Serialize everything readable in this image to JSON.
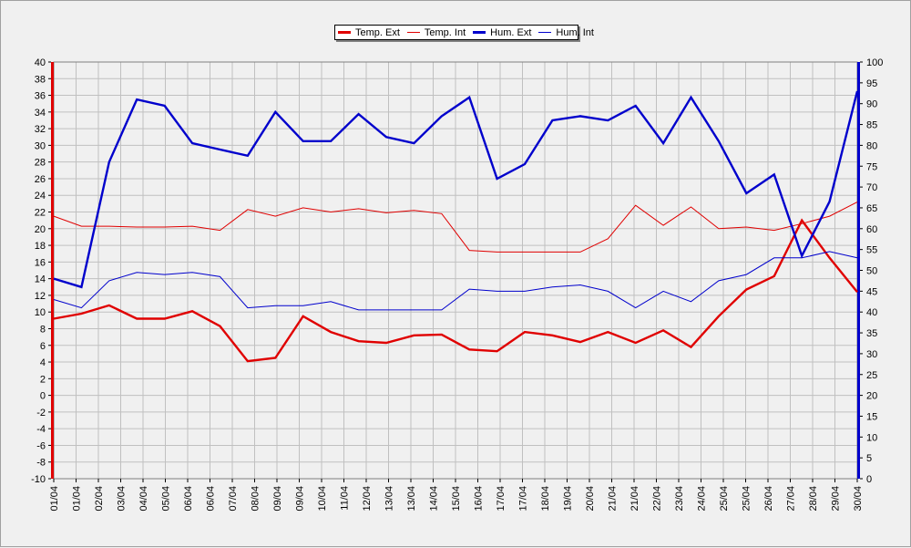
{
  "chart_data": {
    "type": "line",
    "categories": [
      "01/04",
      "01/04",
      "02/04",
      "03/04",
      "04/04",
      "05/04",
      "06/04",
      "06/04",
      "07/04",
      "08/04",
      "09/04",
      "09/04",
      "10/04",
      "11/04",
      "12/04",
      "13/04",
      "13/04",
      "14/04",
      "15/04",
      "16/04",
      "17/04",
      "17/04",
      "18/04",
      "19/04",
      "20/04",
      "21/04",
      "21/04",
      "22/04",
      "23/04",
      "24/04",
      "25/04",
      "25/04",
      "26/04",
      "27/04",
      "28/04",
      "29/04",
      "30/04"
    ],
    "y_left": {
      "min": -10,
      "max": 40,
      "step": 2,
      "ticks": [
        "-10",
        "-8",
        "-6",
        "-4",
        "-2",
        "0",
        "2",
        "4",
        "6",
        "8",
        "10",
        "12",
        "14",
        "16",
        "18",
        "20",
        "22",
        "24",
        "26",
        "28",
        "30",
        "32",
        "34",
        "36",
        "38",
        "40"
      ],
      "color": "#e00000"
    },
    "y_right": {
      "min": 0,
      "max": 100,
      "step": 5,
      "ticks": [
        "0",
        "5",
        "10",
        "15",
        "20",
        "25",
        "30",
        "35",
        "40",
        "45",
        "50",
        "55",
        "60",
        "65",
        "70",
        "75",
        "80",
        "85",
        "90",
        "95",
        "100"
      ],
      "color": "#0000cc"
    },
    "grid": true,
    "legend_position": "top-center",
    "series": [
      {
        "name": "Temp. Ext",
        "axis": "left",
        "color": "#e00000",
        "thick": true,
        "x": [
          0,
          1,
          2,
          3,
          4,
          5,
          6,
          7,
          8,
          9,
          10,
          11,
          12,
          13,
          14,
          15,
          16,
          17,
          18,
          19,
          20,
          21,
          22,
          23,
          24,
          25,
          26,
          27,
          28,
          29
        ],
        "values": [
          9.2,
          9.8,
          10.8,
          9.2,
          9.2,
          10.1,
          8.3,
          4.1,
          4.5,
          9.5,
          7.6,
          6.5,
          6.3,
          7.2,
          7.3,
          5.5,
          5.3,
          7.6,
          7.2,
          6.4,
          7.6,
          6.3,
          7.8,
          5.8,
          9.5,
          12.7,
          14.3,
          21.0,
          16.5,
          12.4
        ]
      },
      {
        "name": "Temp. Int",
        "axis": "left",
        "color": "#e00000",
        "thick": false,
        "x": [
          0,
          1,
          2,
          3,
          4,
          5,
          6,
          7,
          8,
          9,
          10,
          11,
          12,
          13,
          14,
          15,
          16,
          17,
          18,
          19,
          20,
          21,
          22,
          23,
          24,
          25,
          26,
          27,
          28,
          29
        ],
        "values": [
          21.5,
          20.3,
          20.3,
          20.2,
          20.2,
          20.3,
          19.8,
          22.3,
          21.5,
          22.5,
          22.0,
          22.4,
          21.9,
          22.2,
          21.8,
          17.4,
          17.2,
          17.2,
          17.2,
          17.2,
          18.8,
          22.8,
          20.4,
          22.6,
          20.0,
          20.2,
          19.8,
          20.6,
          21.5,
          23.2
        ]
      },
      {
        "name": "Hum. Ext",
        "axis": "right",
        "color": "#0000cc",
        "thick": true,
        "x": [
          0,
          1,
          2,
          3,
          4,
          5,
          6,
          7,
          8,
          9,
          10,
          11,
          12,
          13,
          14,
          15,
          16,
          17,
          18,
          19,
          20,
          21,
          22,
          23,
          24,
          25,
          26,
          27,
          28,
          29
        ],
        "values": [
          48.0,
          46.0,
          76.0,
          91.0,
          89.5,
          80.5,
          79.0,
          77.5,
          88.0,
          81.0,
          81.0,
          87.5,
          82.0,
          80.5,
          87.0,
          91.5,
          72.0,
          75.5,
          86.0,
          87.0,
          86.0,
          89.5,
          80.5,
          91.5,
          81.0,
          68.5,
          73.0,
          53.5,
          66.5,
          93.0
        ]
      },
      {
        "name": "Hum. Int",
        "axis": "right",
        "color": "#0000cc",
        "thick": false,
        "x": [
          0,
          1,
          2,
          3,
          4,
          5,
          6,
          7,
          8,
          9,
          10,
          11,
          12,
          13,
          14,
          15,
          16,
          17,
          18,
          19,
          20,
          21,
          22,
          23,
          24,
          25,
          26,
          27,
          28,
          29
        ],
        "values": [
          43.0,
          41.0,
          47.5,
          49.5,
          49.0,
          49.5,
          48.5,
          41.0,
          41.5,
          41.5,
          42.5,
          40.5,
          40.5,
          40.5,
          40.5,
          45.5,
          45.0,
          45.0,
          46.0,
          46.5,
          45.0,
          41.0,
          45.0,
          42.5,
          47.5,
          49.0,
          53.0,
          53.0,
          54.5,
          53.0
        ]
      }
    ]
  }
}
